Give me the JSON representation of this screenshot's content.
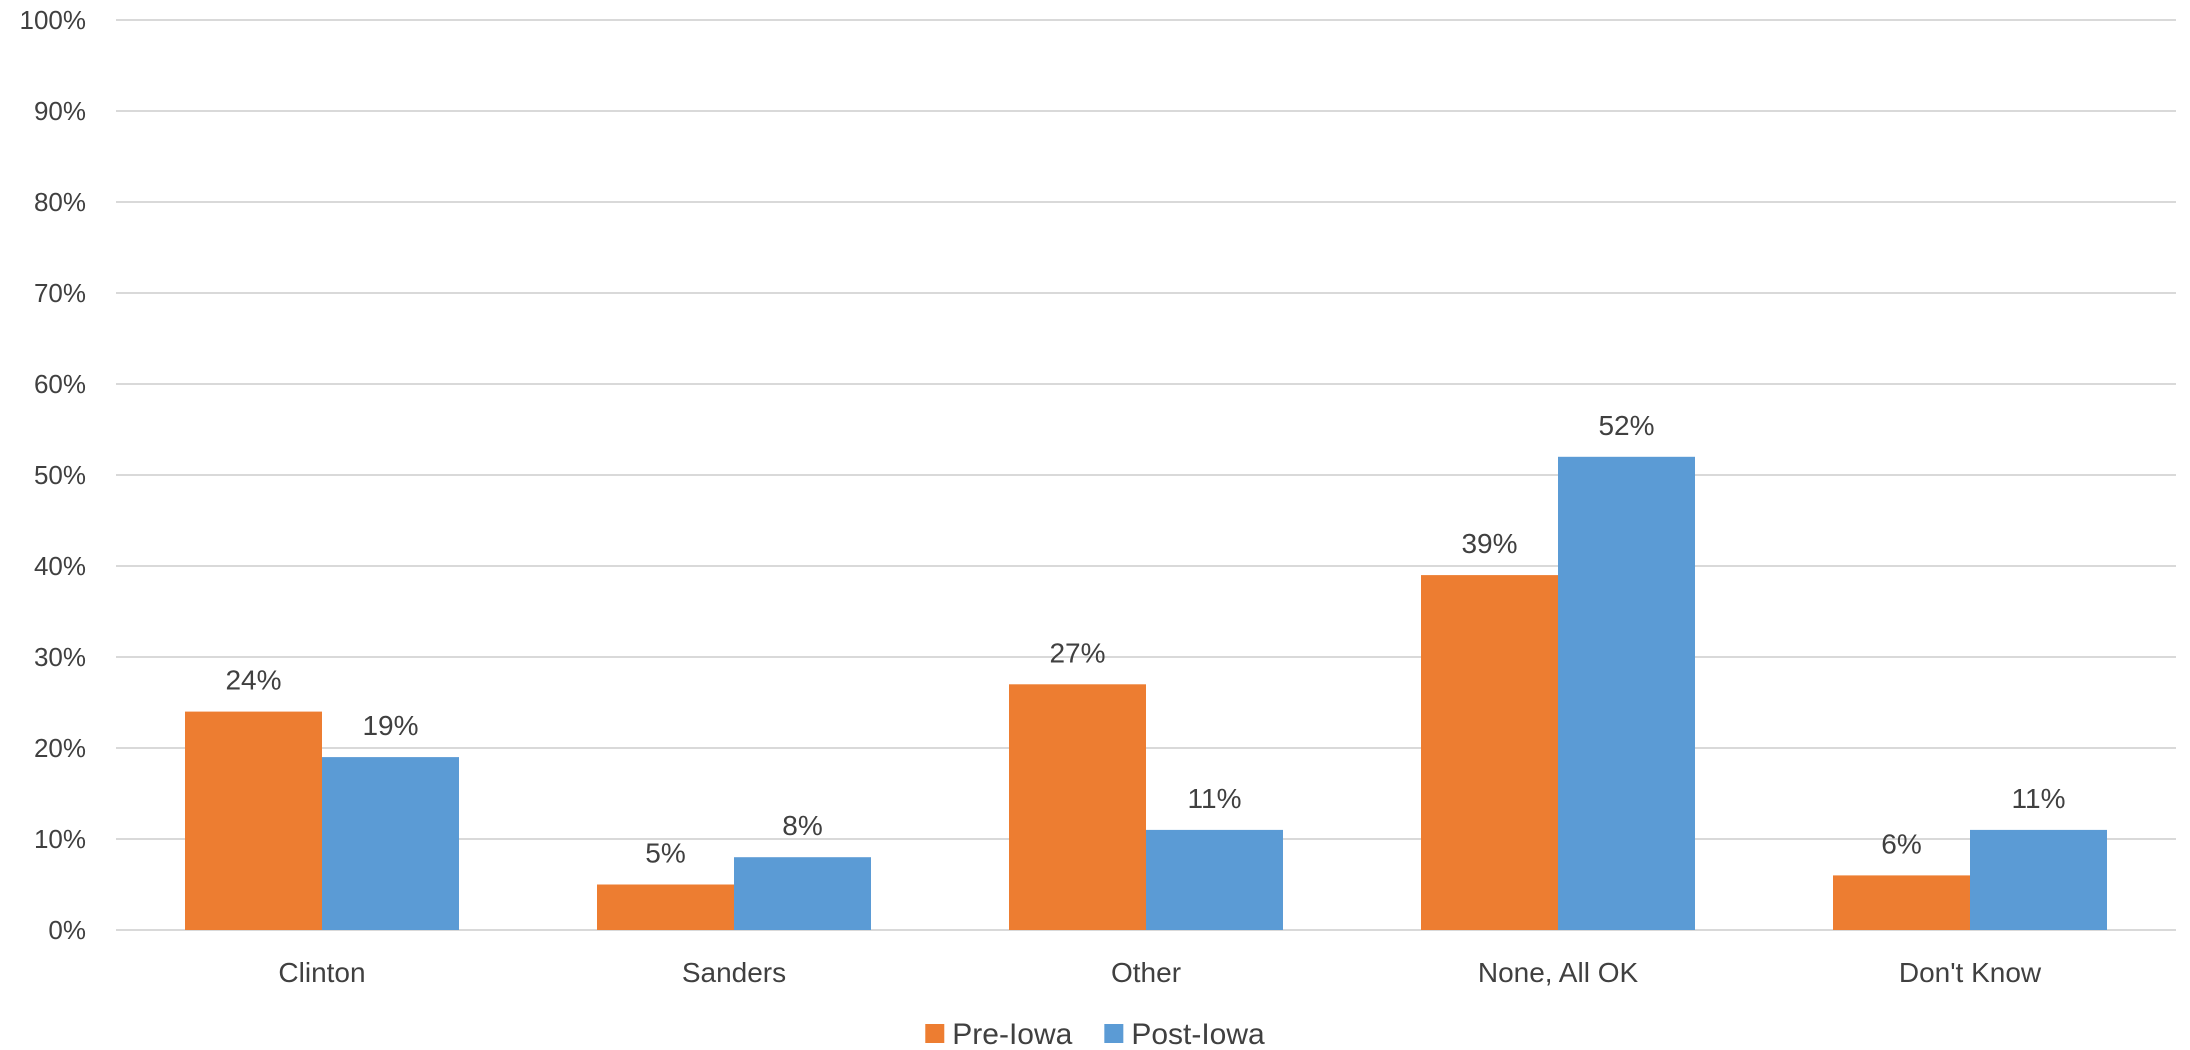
{
  "chart_data": {
    "type": "bar",
    "categories": [
      "Clinton",
      "Sanders",
      "Other",
      "None, All OK",
      "Don't Know"
    ],
    "series": [
      {
        "name": "Pre-Iowa",
        "values": [
          24,
          5,
          27,
          39,
          6
        ],
        "color": "#ed7d31"
      },
      {
        "name": "Post-Iowa",
        "values": [
          19,
          8,
          11,
          52,
          11
        ],
        "color": "#5b9bd5"
      }
    ],
    "data_labels": [
      [
        "24%",
        "5%",
        "27%",
        "39%",
        "6%"
      ],
      [
        "19%",
        "8%",
        "11%",
        "52%",
        "11%"
      ]
    ],
    "y_ticks": [
      "0%",
      "10%",
      "20%",
      "30%",
      "40%",
      "50%",
      "60%",
      "70%",
      "80%",
      "90%",
      "100%"
    ],
    "ylim": [
      0,
      100
    ],
    "grid": true,
    "legend_position": "bottom"
  }
}
